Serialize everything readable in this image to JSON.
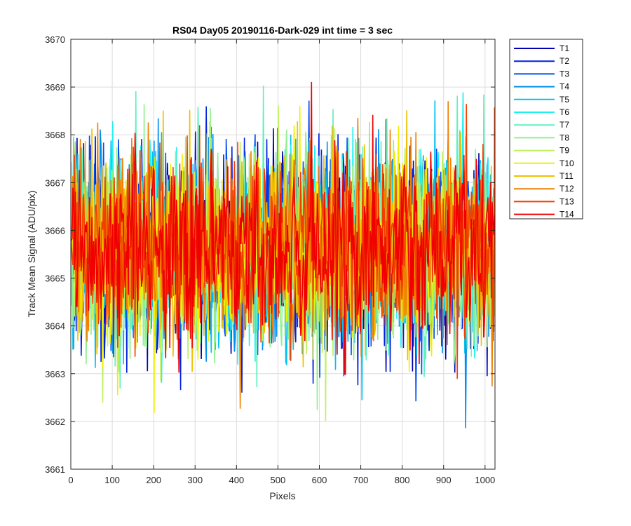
{
  "chart_data": {
    "type": "line",
    "title": "RS04 Day05 20190116-Dark-029 int time = 3 sec",
    "xlabel": "Pixels",
    "ylabel": "Track Mean Signal (ADU/pix)",
    "xlim": [
      0,
      1024
    ],
    "ylim": [
      3661,
      3670
    ],
    "x_ticks": [
      0,
      100,
      200,
      300,
      400,
      500,
      600,
      700,
      800,
      900,
      1000
    ],
    "y_ticks": [
      3661,
      3662,
      3663,
      3664,
      3665,
      3666,
      3667,
      3668,
      3669,
      3670
    ],
    "grid": true,
    "legend_position": "outside-top-right",
    "x_range": [
      1,
      1024
    ],
    "series_center": 3665.6,
    "series_typical_range": [
      3663.5,
      3668.0
    ],
    "series": [
      {
        "name": "T1",
        "color": "#0000b4"
      },
      {
        "name": "T2",
        "color": "#0020e0"
      },
      {
        "name": "T3",
        "color": "#0050f0"
      },
      {
        "name": "T4",
        "color": "#0090f0"
      },
      {
        "name": "T5",
        "color": "#00c0f0"
      },
      {
        "name": "T6",
        "color": "#20f0f0"
      },
      {
        "name": "T7",
        "color": "#60f0c0"
      },
      {
        "name": "T8",
        "color": "#90f090"
      },
      {
        "name": "T9",
        "color": "#c0f060"
      },
      {
        "name": "T10",
        "color": "#f0f000"
      },
      {
        "name": "T11",
        "color": "#f0c000"
      },
      {
        "name": "T12",
        "color": "#f08000"
      },
      {
        "name": "T13",
        "color": "#f04000"
      },
      {
        "name": "T14",
        "color": "#f00000"
      }
    ]
  }
}
